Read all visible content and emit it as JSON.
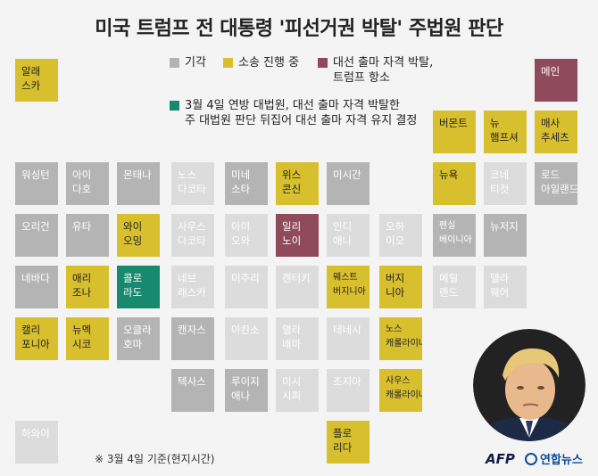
{
  "title": "미국 트럼프 전 대통령 '피선거권 박탈' 주법원 판단",
  "colors": {
    "gray": "#b4b4b4",
    "gold": "#d8bf2e",
    "maroon": "#8f4a5c",
    "teal": "#17896e",
    "faded": "#dcdcdc"
  },
  "legend": {
    "abandoned": "기각",
    "in_litigation": "소송 진행 중",
    "disqualified_line1": "대선 출마 자격 박탈,",
    "disqualified_line2": "트럼프 항소",
    "overturned_line1": "3월 4일 연방 대법원, 대선 출마 자격 박탈한",
    "overturned_line2": "주 대법원 판단 뒤집어 대선 출마 자격 유지 결정"
  },
  "states": {
    "alaska": "알래\n스카",
    "maine": "메인",
    "vermont": "버몬트",
    "new_hampshire": "뉴\n햄프셔",
    "massachusetts": "매사\n추세츠",
    "washington": "워싱턴",
    "idaho": "아이\n다호",
    "montana": "몬태나",
    "north_dakota": "노스\n다코타",
    "minnesota": "미네\n소타",
    "wisconsin": "위스\n콘신",
    "michigan": "미시간",
    "new_york": "뉴욕",
    "connecticut": "코네\n티컷",
    "rhode_island": "로드\n아일랜드",
    "oregon": "오리건",
    "utah": "유타",
    "wyoming": "와이\n오밍",
    "south_dakota": "사우스\n다코타",
    "iowa": "아이\n오와",
    "illinois": "일리\n노이",
    "indiana": "인디\n애나",
    "ohio": "오하\n이오",
    "pennsylvania": "펜실\n베이니아",
    "new_jersey": "뉴저지",
    "nevada": "네바다",
    "arizona": "애리\n조나",
    "colorado": "콜로\n라도",
    "nebraska": "네브\n래스카",
    "missouri": "미주리",
    "kentucky": "켄터키",
    "west_virginia": "웨스트\n버지니아",
    "virginia": "버지\n니아",
    "maryland": "메릴\n랜드",
    "delaware": "델라\n웨어",
    "california": "캘리\n포니아",
    "new_mexico": "뉴멕\n시코",
    "oklahoma": "오클라\n호마",
    "kansas": "캔자스",
    "arkansas": "아칸소",
    "alabama": "앨라\n배마",
    "tennessee": "테네시",
    "north_carolina": "노스\n캐롤라이나",
    "texas": "텍사스",
    "louisiana": "루이지\n애나",
    "mississippi": "미시\n시피",
    "georgia": "조지아",
    "south_carolina": "사우스\n캐롤라이나",
    "hawaii": "하와이",
    "florida": "플로\n리다"
  },
  "note": "※ 3월 4일 기준(현지시간)",
  "credits": {
    "afp": "AFP",
    "yonhap": "연합뉴스"
  }
}
